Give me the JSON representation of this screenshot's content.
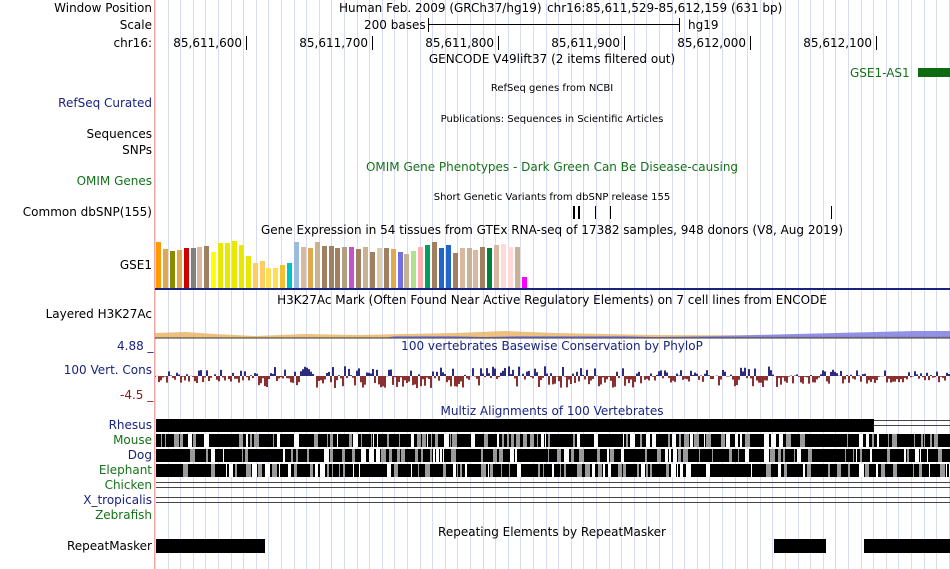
{
  "ruler": {
    "window_position_label": "Window Position",
    "scale_label": "Scale",
    "chrom_label": "chr16:",
    "assembly": "Human Feb. 2009 (GRCh37/hg19)",
    "position": "chr16:85,611,529-85,612,159 (631 bp)",
    "scale_text": "200 bases",
    "scale_db": "hg19",
    "ticks": [
      "85,611,600",
      "85,611,700",
      "85,611,800",
      "85,611,900",
      "85,612,000",
      "85,612,100"
    ]
  },
  "tracks": {
    "gencode": {
      "title": "GENCODE V49lift37 (2 items filtered out)",
      "gene": "GSE1-AS1"
    },
    "refseq": {
      "label": "RefSeq Curated",
      "title": "RefSeq genes from NCBI"
    },
    "publications": {
      "label": "Sequences",
      "title": "Publications: Sequences in Scientific Articles"
    },
    "snps": {
      "label": "SNPs"
    },
    "omim": {
      "label": "OMIM Genes",
      "title": "OMIM Gene Phenotypes - Dark Green Can Be Disease-causing"
    },
    "dbsnp": {
      "label": "Common dbSNP(155)",
      "title": "Short Genetic Variants from dbSNP release 155"
    },
    "gtex": {
      "label": "GSE1",
      "title": "Gene Expression in 54 tissues from GTEx RNA-seq of 17382 samples, 948 donors (V8, Aug 2019)",
      "levels": [
        0.92,
        0.78,
        0.74,
        0.76,
        0.8,
        0.8,
        0.82,
        0.84,
        0.72,
        0.9,
        0.9,
        0.94,
        0.86,
        0.64,
        0.5,
        0.54,
        0.4,
        0.4,
        0.46,
        0.5,
        0.92,
        0.82,
        0.8,
        0.92,
        0.84,
        0.84,
        0.8,
        0.82,
        0.82,
        0.78,
        0.82,
        0.72,
        0.8,
        0.8,
        0.78,
        0.72,
        0.68,
        0.74,
        0.82,
        0.86,
        0.92,
        0.8,
        0.86,
        0.7,
        0.8,
        0.8,
        0.76,
        0.82,
        0.8,
        0.86,
        0.88,
        0.82,
        0.82,
        0.22
      ],
      "colors": [
        "#ff9a00",
        "#e0a94e",
        "#8b8b00",
        "#e0a94e",
        "#d00000",
        "#808080",
        "#d8b8a0",
        "#a08060",
        "#ffff00",
        "#e8e800",
        "#e8e800",
        "#e8e800",
        "#e8e800",
        "#e8e800",
        "#ffcc66",
        "#ffcc66",
        "#ffdd55",
        "#ffdd55",
        "#eec233",
        "#00c4c4",
        "#99bbdd",
        "#d8b8a0",
        "#e0a94e",
        "#c8b296",
        "#a08060",
        "#a08060",
        "#a08060",
        "#b0a080",
        "#c850c8",
        "#a08060",
        "#c8b296",
        "#a08060",
        "#ddccaa",
        "#a08060",
        "#e0a94e",
        "#7070e0",
        "#c8b296",
        "#b0e090",
        "#ffb0b0",
        "#00a060",
        "#a08060",
        "#2266cc",
        "#2266cc",
        "#a08060",
        "#d8b8a0",
        "#c8b296",
        "#d8b8a0",
        "#a08060",
        "#008040",
        "#d8b8a0",
        "#ffd8d8",
        "#ffd8d8",
        "#c8b296",
        "#ff00ff"
      ]
    },
    "h3k27ac": {
      "label": "Layered H3K27Ac",
      "title": "H3K27Ac Mark (Often Found Near Active Regulatory Elements) on 7 cell lines from ENCODE"
    },
    "cons": {
      "label": "100 Vert. Cons",
      "title": "100 vertebrates Basewise Conservation by PhyloP",
      "max": "4.88 _",
      "min": "-4.5 _"
    },
    "multiz": {
      "title": "Multiz Alignments of 100 Vertebrates",
      "species": [
        "Rhesus",
        "Mouse",
        "Dog",
        "Elephant",
        "Chicken",
        "X_tropicalis",
        "Zebrafish"
      ]
    },
    "repeatmasker": {
      "label": "RepeatMasker",
      "title": "Repeating Elements by RepeatMasker"
    }
  },
  "colors": {
    "navy": "#1a237e",
    "green": "#14721a",
    "cons_pos": "#2b2b80",
    "cons_neg": "#8b3030",
    "h3k27ac_orange": "#e0a040",
    "h3k27ac_blue": "#8080e0"
  }
}
